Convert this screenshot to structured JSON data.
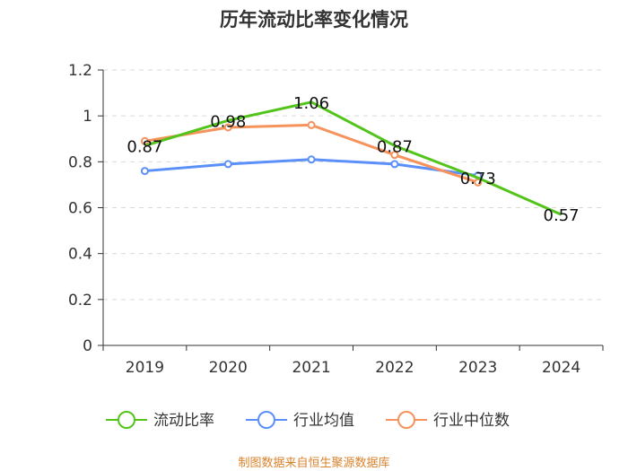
{
  "title": "历年流动比率变化情况",
  "source": "制图数据来自恒生聚源数据库",
  "chart_data": {
    "type": "line",
    "categories": [
      "2019",
      "2020",
      "2021",
      "2022",
      "2023",
      "2024"
    ],
    "ylim": [
      0,
      1.2
    ],
    "yticks": [
      "0",
      "0.2",
      "0.4",
      "0.6",
      "0.8",
      "1",
      "1.2"
    ],
    "grid": true,
    "legend_position": "bottom",
    "series": [
      {
        "name": "流动比率",
        "color": "#52c41a",
        "values": [
          0.87,
          0.98,
          1.06,
          0.87,
          0.73,
          0.57
        ],
        "labels": [
          "0.87",
          "0.98",
          "1.06",
          "0.87",
          "0.73",
          "0.57"
        ]
      },
      {
        "name": "行业均值",
        "color": "#5b8ff9",
        "values": [
          0.76,
          0.79,
          0.81,
          0.79,
          0.74,
          null
        ]
      },
      {
        "name": "行业中位数",
        "color": "#f6925b",
        "values": [
          0.89,
          0.95,
          0.96,
          0.83,
          0.71,
          null
        ]
      }
    ]
  }
}
